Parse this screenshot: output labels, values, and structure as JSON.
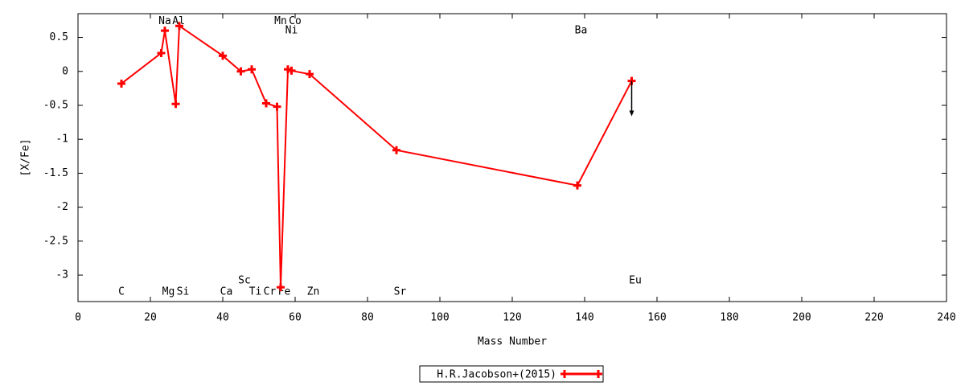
{
  "chart_data": {
    "type": "line",
    "xlabel": "Mass Number",
    "ylabel": "[X/Fe]",
    "xlim": [
      0,
      240
    ],
    "ylim": [
      -3.39,
      0.85
    ],
    "xticks": [
      0,
      20,
      40,
      60,
      80,
      100,
      120,
      140,
      160,
      180,
      200,
      220,
      240
    ],
    "yticks": [
      0.5,
      0,
      -0.5,
      -1,
      -1.5,
      -2,
      -2.5,
      -3
    ],
    "series": [
      {
        "name": "H.R.Jacobson+(2015)",
        "color": "#ff0000",
        "x": [
          12,
          23,
          24,
          27,
          28,
          40,
          45,
          48,
          52,
          55,
          56,
          58,
          59,
          64,
          88,
          138,
          153
        ],
        "values": [
          -0.18,
          0.27,
          0.6,
          -0.48,
          0.67,
          0.23,
          0.0,
          0.03,
          -0.47,
          -0.52,
          -3.18,
          0.03,
          0.01,
          -0.04,
          -1.16,
          -1.68,
          -0.14
        ]
      }
    ],
    "arrows": [
      {
        "x": 153,
        "y_from": -0.14,
        "y_to": -0.66
      }
    ],
    "annotations": [
      {
        "text": "C",
        "x": 12,
        "y": -3.25
      },
      {
        "text": "Na",
        "x": 24,
        "y": 0.74
      },
      {
        "text": "Al",
        "x": 27.8,
        "y": 0.74
      },
      {
        "text": "Mg",
        "x": 25,
        "y": -3.25
      },
      {
        "text": "Si",
        "x": 29,
        "y": -3.25
      },
      {
        "text": "Ca",
        "x": 41,
        "y": -3.25
      },
      {
        "text": "Sc",
        "x": 46,
        "y": -3.08
      },
      {
        "text": "Ti",
        "x": 49,
        "y": -3.25
      },
      {
        "text": "Cr",
        "x": 53,
        "y": -3.25
      },
      {
        "text": "Fe",
        "x": 57,
        "y": -3.25
      },
      {
        "text": "Mn",
        "x": 56,
        "y": 0.74
      },
      {
        "text": "Co",
        "x": 60,
        "y": 0.74
      },
      {
        "text": "Ni",
        "x": 59,
        "y": 0.6
      },
      {
        "text": "Zn",
        "x": 65,
        "y": -3.25
      },
      {
        "text": "Sr",
        "x": 89,
        "y": -3.25
      },
      {
        "text": "Ba",
        "x": 139,
        "y": 0.6
      },
      {
        "text": "Eu",
        "x": 154,
        "y": -3.08
      }
    ],
    "legend": "bottom"
  }
}
